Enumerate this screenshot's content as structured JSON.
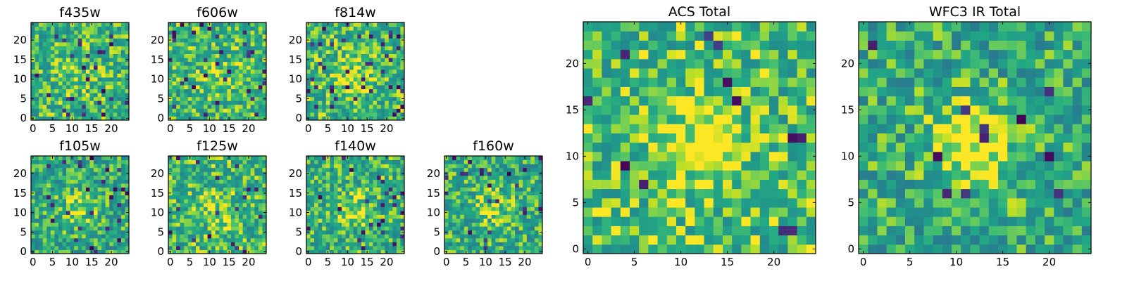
{
  "chart_data": [
    {
      "id": "f435w",
      "type": "heatmap",
      "title": "f435w",
      "grid_size": 25,
      "colormap": "viridis",
      "seed": 435,
      "bias": 0.05,
      "center_boost": 0.12,
      "dark_rate": 0.04,
      "xticks": [
        0,
        5,
        10,
        15,
        20
      ],
      "yticks": [
        0,
        5,
        10,
        15,
        20
      ],
      "xlim": [
        0,
        25
      ],
      "ylim": [
        0,
        25
      ]
    },
    {
      "id": "f606w",
      "type": "heatmap",
      "title": "f606w",
      "grid_size": 25,
      "colormap": "viridis",
      "seed": 606,
      "bias": 0.05,
      "center_boost": 0.14,
      "dark_rate": 0.05,
      "xticks": [
        0,
        5,
        10,
        15,
        20
      ],
      "yticks": [
        0,
        5,
        10,
        15,
        20
      ],
      "xlim": [
        0,
        25
      ],
      "ylim": [
        0,
        25
      ]
    },
    {
      "id": "f814w",
      "type": "heatmap",
      "title": "f814w",
      "grid_size": 25,
      "colormap": "viridis",
      "seed": 814,
      "bias": 0.05,
      "center_boost": 0.16,
      "dark_rate": 0.04,
      "xticks": [
        0,
        5,
        10,
        15,
        20
      ],
      "yticks": [
        0,
        5,
        10,
        15,
        20
      ],
      "xlim": [
        0,
        25
      ],
      "ylim": [
        0,
        25
      ]
    },
    {
      "id": "f105w",
      "type": "heatmap",
      "title": "f105w",
      "grid_size": 25,
      "colormap": "viridis",
      "seed": 105,
      "bias": 0.0,
      "center_boost": 0.18,
      "dark_rate": 0.04,
      "xticks": [
        0,
        5,
        10,
        15,
        20
      ],
      "yticks": [
        0,
        5,
        10,
        15,
        20
      ],
      "xlim": [
        0,
        25
      ],
      "ylim": [
        0,
        25
      ]
    },
    {
      "id": "f125w",
      "type": "heatmap",
      "title": "f125w",
      "grid_size": 25,
      "colormap": "viridis",
      "seed": 125,
      "bias": 0.05,
      "center_boost": 0.15,
      "dark_rate": 0.03,
      "xticks": [
        0,
        5,
        10,
        15,
        20
      ],
      "yticks": [
        0,
        5,
        10,
        15,
        20
      ],
      "xlim": [
        0,
        25
      ],
      "ylim": [
        0,
        25
      ]
    },
    {
      "id": "f140w",
      "type": "heatmap",
      "title": "f140w",
      "grid_size": 25,
      "colormap": "viridis",
      "seed": 140,
      "bias": 0.03,
      "center_boost": 0.16,
      "dark_rate": 0.04,
      "xticks": [
        0,
        5,
        10,
        15,
        20
      ],
      "yticks": [
        0,
        5,
        10,
        15,
        20
      ],
      "xlim": [
        0,
        25
      ],
      "ylim": [
        0,
        25
      ]
    },
    {
      "id": "f160w",
      "type": "heatmap",
      "title": "f160w",
      "grid_size": 25,
      "colormap": "viridis",
      "seed": 160,
      "bias": 0.02,
      "center_boost": 0.15,
      "dark_rate": 0.04,
      "xticks": [
        0,
        5,
        10,
        15,
        20
      ],
      "yticks": [
        0,
        5,
        10,
        15,
        20
      ],
      "xlim": [
        0,
        25
      ],
      "ylim": [
        0,
        25
      ]
    },
    {
      "id": "acs_total",
      "type": "heatmap",
      "title": "ACS Total",
      "grid_size": 25,
      "colormap": "viridis",
      "seed": 2001,
      "bias": 0.08,
      "center_boost": 0.22,
      "dark_rate": 0.03,
      "xticks": [
        0,
        5,
        10,
        15,
        20
      ],
      "yticks": [
        0,
        5,
        10,
        15,
        20
      ],
      "xlim": [
        0,
        25
      ],
      "ylim": [
        0,
        25
      ]
    },
    {
      "id": "wfc3_ir_total",
      "type": "heatmap",
      "title": "WFC3 IR Total",
      "grid_size": 25,
      "colormap": "viridis",
      "seed": 3001,
      "bias": 0.0,
      "center_boost": 0.3,
      "dark_rate": 0.015,
      "xticks": [
        0,
        5,
        10,
        15,
        20
      ],
      "yticks": [
        0,
        5,
        10,
        15,
        20
      ],
      "xlim": [
        0,
        25
      ],
      "ylim": [
        0,
        25
      ]
    }
  ]
}
